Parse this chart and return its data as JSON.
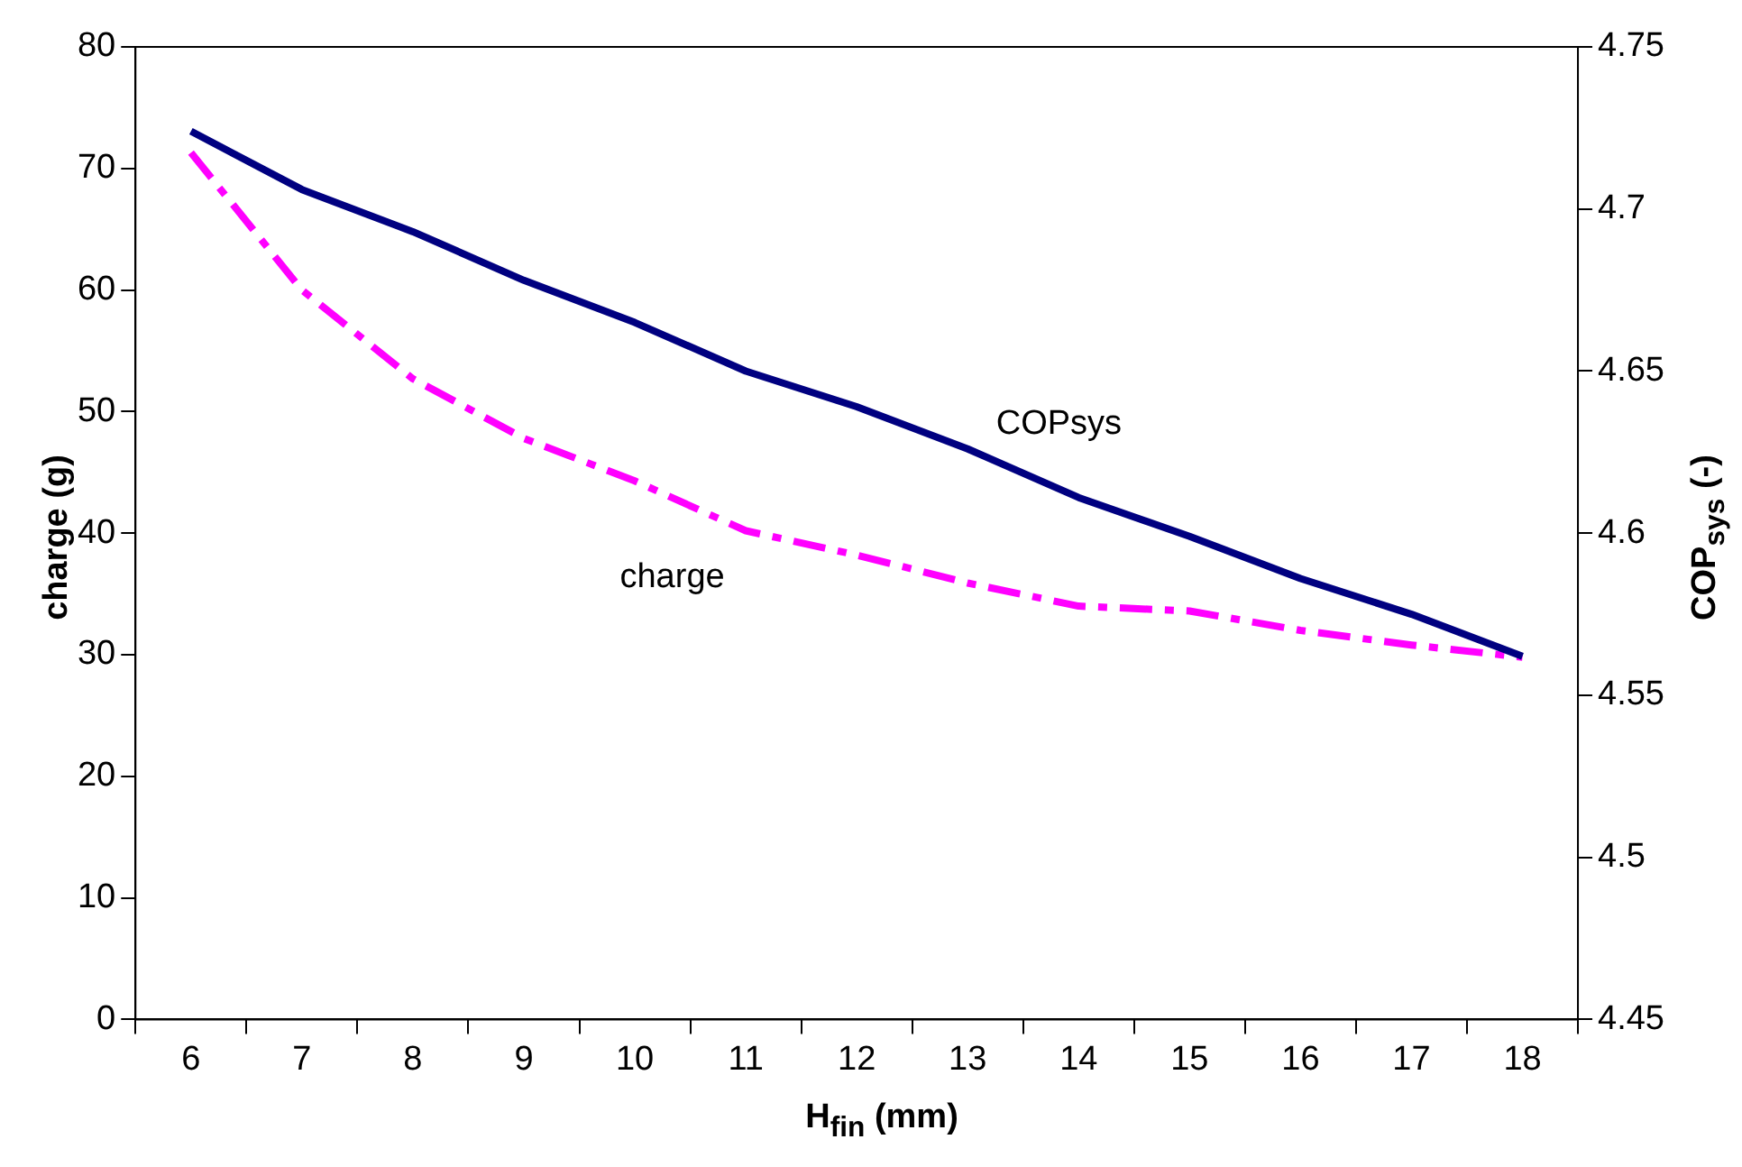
{
  "chart_data": {
    "type": "line",
    "xlabel": "H$_{fin}$ (mm)",
    "ylabel": "charge (g)",
    "y2label": "COP$_{sys}$ (-)",
    "categories": [
      "6",
      "7",
      "8",
      "9",
      "10",
      "11",
      "12",
      "13",
      "14",
      "15",
      "16",
      "17",
      "18"
    ],
    "series": [
      {
        "name": "COPsys",
        "color": "#000080",
        "axis": "y2",
        "line_style": "solid",
        "values": [
          4.724,
          4.706,
          4.693,
          4.678,
          4.665,
          4.65,
          4.639,
          4.626,
          4.611,
          4.599,
          4.586,
          4.575,
          4.562
        ]
      },
      {
        "name": "charge",
        "color": "#ff00ff",
        "line_style": "dashed",
        "values": [
          71.3,
          60.0,
          52.7,
          47.8,
          44.3,
          40.2,
          38.2,
          35.9,
          34.0,
          33.6,
          32.0,
          30.8,
          29.8
        ]
      }
    ],
    "ylim": [
      0,
      80
    ],
    "yticks": [
      0,
      10,
      20,
      30,
      40,
      50,
      60,
      70,
      80
    ],
    "y2lim": [
      4.45,
      4.75
    ],
    "y2ticks": [
      4.45,
      4.5,
      4.55,
      4.6,
      4.65,
      4.7,
      4.75
    ],
    "grid": false,
    "legend": false,
    "marker": "none"
  }
}
